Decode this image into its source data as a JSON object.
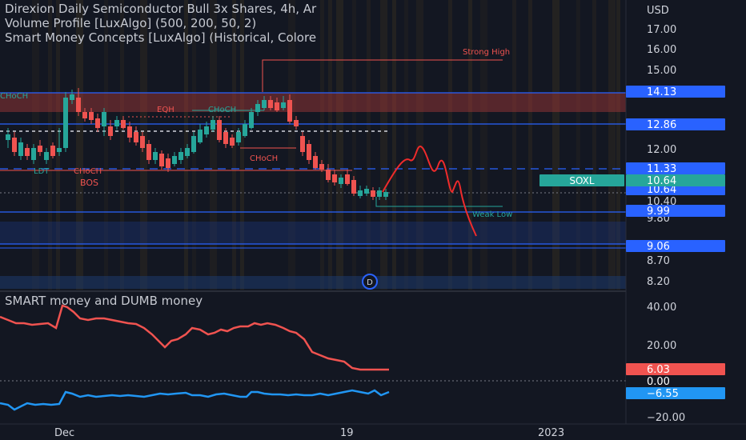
{
  "header": {
    "title_line1": "Direxion Daily Semiconductor Bull 3x Shares, 4h, Ar",
    "title_line2": "Volume Profile [LuxAlgo] (500, 200, 50, 2)",
    "title_line3": "Smart Money Concepts [LuxAlgo] (Historical, Colore",
    "currency": "USD"
  },
  "price_axis": {
    "ticks": [
      "17.00",
      "16.00",
      "15.00",
      "12.00",
      "10.40",
      "9.80",
      "8.70",
      "8.20"
    ],
    "tags": [
      {
        "label": "14.13",
        "color": "#2962ff"
      },
      {
        "label": "12.86",
        "color": "#2962ff"
      },
      {
        "label": "11.33",
        "color": "#2962ff"
      },
      {
        "label": "10.64",
        "color": "#2962ff"
      },
      {
        "label": "9.99",
        "color": "#2962ff"
      },
      {
        "label": "9.06",
        "color": "#2962ff"
      }
    ],
    "symbol_tag": {
      "symbol": "SOXL",
      "price": "10.64",
      "color": "#26a69a"
    }
  },
  "annotations": {
    "strong_high": "Strong High",
    "weak_low": "Weak Low",
    "choch_left": "CHoCH",
    "eqh": "EQH",
    "choch_mid": "CHoCH",
    "choch_low": "CHoCH",
    "ldt": "LDT",
    "choch_lower": "CHoCH",
    "bos": "BOS",
    "d_badge": "D"
  },
  "indicator": {
    "title": "SMART money and DUMB money",
    "ticks": [
      "40.00",
      "20.00",
      "0.00",
      "−20.00"
    ],
    "tags": [
      {
        "label": "6.03",
        "color": "#f05350"
      },
      {
        "label": "0.00",
        "color": "#131722"
      },
      {
        "label": "−6.55",
        "color": "#2196f3"
      }
    ],
    "smart_color": "#2196f3",
    "dumb_color": "#f05350"
  },
  "time_axis": {
    "labels": [
      "Dec",
      "19",
      "2023"
    ]
  },
  "colors": {
    "up": "#26a69a",
    "down": "#ef5350",
    "level": "#2962ff",
    "background": "#131722"
  }
}
